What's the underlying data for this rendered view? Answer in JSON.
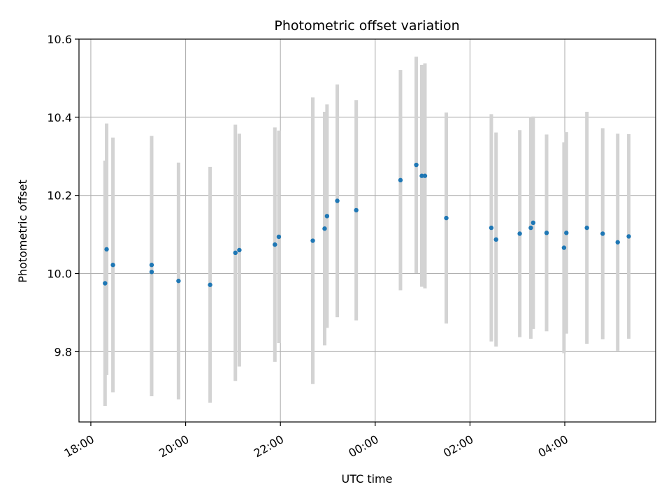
{
  "chart_data": {
    "type": "scatter",
    "title": "Photometric offset variation",
    "xlabel": "UTC time",
    "ylabel": "Photometric offset",
    "x_unit": "UTC",
    "x_ticks": [
      "18:00",
      "20:00",
      "22:00",
      "00:00",
      "02:00",
      "04:00"
    ],
    "y_ticks": [
      "9.8",
      "10.0",
      "10.2",
      "10.4",
      "10.6"
    ],
    "ylim": [
      9.62,
      10.6
    ],
    "xlim": [
      "17:45",
      "05:55"
    ],
    "grid": true,
    "series": [
      {
        "points": [
          {
            "x": "18:18",
            "y": 9.975,
            "err": 0.314
          },
          {
            "x": "18:20",
            "y": 10.062,
            "err": 0.322
          },
          {
            "x": "18:28",
            "y": 10.022,
            "err": 0.326
          },
          {
            "x": "19:17",
            "y": 10.022,
            "err": 0.33
          },
          {
            "x": "19:17",
            "y": 10.004,
            "err": 0.318
          },
          {
            "x": "19:51",
            "y": 9.981,
            "err": 0.303
          },
          {
            "x": "20:31",
            "y": 9.971,
            "err": 0.302
          },
          {
            "x": "21:03",
            "y": 10.053,
            "err": 0.328
          },
          {
            "x": "21:08",
            "y": 10.06,
            "err": 0.298
          },
          {
            "x": "21:53",
            "y": 10.074,
            "err": 0.3
          },
          {
            "x": "21:58",
            "y": 10.094,
            "err": 0.272
          },
          {
            "x": "22:41",
            "y": 10.084,
            "err": 0.367
          },
          {
            "x": "22:56",
            "y": 10.115,
            "err": 0.299
          },
          {
            "x": "22:59",
            "y": 10.147,
            "err": 0.286
          },
          {
            "x": "23:12",
            "y": 10.186,
            "err": 0.298
          },
          {
            "x": "23:36",
            "y": 10.162,
            "err": 0.282
          },
          {
            "x": "00:32",
            "y": 10.239,
            "err": 0.282
          },
          {
            "x": "00:52",
            "y": 10.278,
            "err": 0.277
          },
          {
            "x": "00:59",
            "y": 10.25,
            "err": 0.284
          },
          {
            "x": "01:03",
            "y": 10.25,
            "err": 0.288
          },
          {
            "x": "01:30",
            "y": 10.142,
            "err": 0.27
          },
          {
            "x": "02:27",
            "y": 10.117,
            "err": 0.291
          },
          {
            "x": "02:33",
            "y": 10.087,
            "err": 0.274
          },
          {
            "x": "03:03",
            "y": 10.102,
            "err": 0.265
          },
          {
            "x": "03:17",
            "y": 10.117,
            "err": 0.284
          },
          {
            "x": "03:20",
            "y": 10.13,
            "err": 0.272
          },
          {
            "x": "03:37",
            "y": 10.104,
            "err": 0.252
          },
          {
            "x": "03:59",
            "y": 10.066,
            "err": 0.27
          },
          {
            "x": "04:02",
            "y": 10.104,
            "err": 0.258
          },
          {
            "x": "04:28",
            "y": 10.117,
            "err": 0.297
          },
          {
            "x": "04:48",
            "y": 10.102,
            "err": 0.27
          },
          {
            "x": "05:07",
            "y": 10.08,
            "err": 0.278
          },
          {
            "x": "05:21",
            "y": 10.095,
            "err": 0.262
          }
        ]
      }
    ]
  }
}
